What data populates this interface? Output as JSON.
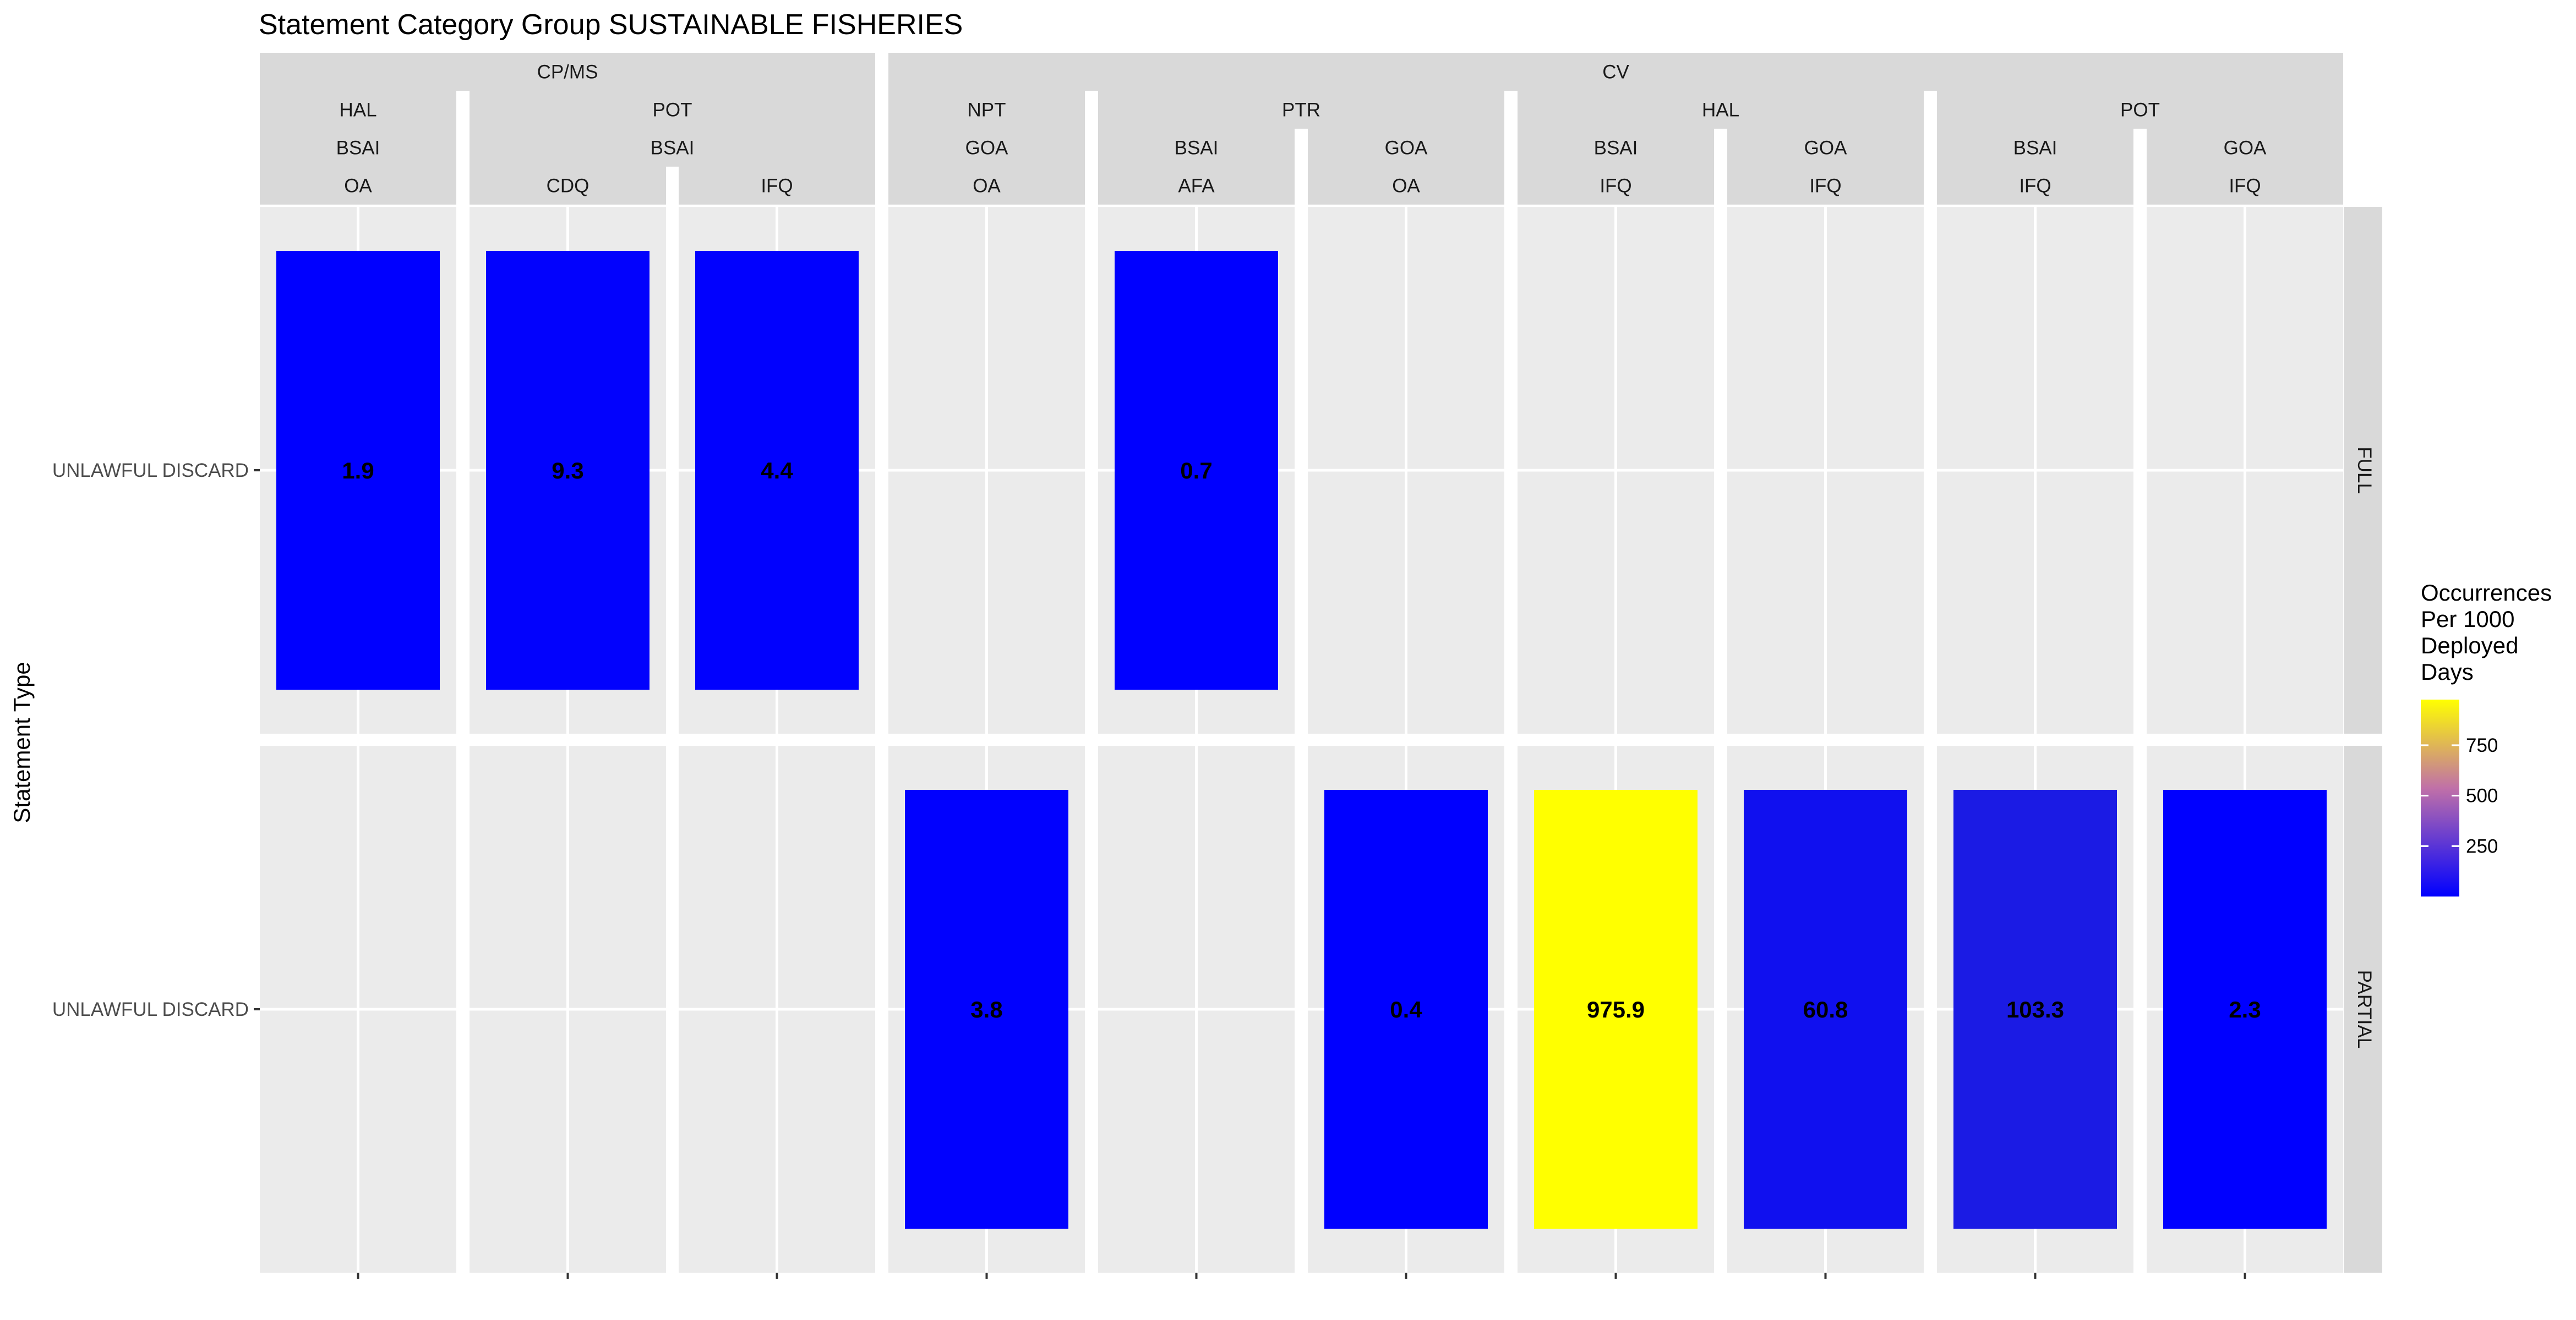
{
  "title": "Statement Category Group SUSTAINABLE FISHERIES",
  "chart_data": {
    "type": "bar",
    "title": "Statement Category Group SUSTAINABLE FISHERIES",
    "ylabel": "Statement Type",
    "xlabel": "",
    "columns": [
      {
        "level1": "CP/MS",
        "level2": "HAL",
        "level3": "BSAI",
        "level4": "OA"
      },
      {
        "level1": "CP/MS",
        "level2": "POT",
        "level3": "BSAI",
        "level4": "CDQ"
      },
      {
        "level1": "CP/MS",
        "level2": "POT",
        "level3": "BSAI",
        "level4": "IFQ"
      },
      {
        "level1": "CV",
        "level2": "NPT",
        "level3": "GOA",
        "level4": "OA"
      },
      {
        "level1": "CV",
        "level2": "PTR",
        "level3": "BSAI",
        "level4": "AFA"
      },
      {
        "level1": "CV",
        "level2": "PTR",
        "level3": "GOA",
        "level4": "OA"
      },
      {
        "level1": "CV",
        "level2": "HAL",
        "level3": "BSAI",
        "level4": "IFQ"
      },
      {
        "level1": "CV",
        "level2": "HAL",
        "level3": "GOA",
        "level4": "IFQ"
      },
      {
        "level1": "CV",
        "level2": "POT",
        "level3": "BSAI",
        "level4": "IFQ"
      },
      {
        "level1": "CV",
        "level2": "POT",
        "level3": "GOA",
        "level4": "IFQ"
      }
    ],
    "rows": [
      "FULL",
      "PARTIAL"
    ],
    "row_tick_labels": [
      "UNLAWFUL DISCARD",
      "UNLAWFUL DISCARD"
    ],
    "series": [
      {
        "row": "FULL",
        "values": [
          1.9,
          9.3,
          4.4,
          null,
          0.7,
          null,
          null,
          null,
          null,
          null
        ],
        "labels": [
          "1.9",
          "9.3",
          "4.4",
          null,
          "0.7",
          null,
          null,
          null,
          null,
          null
        ]
      },
      {
        "row": "PARTIAL",
        "values": [
          null,
          null,
          null,
          3.8,
          null,
          0.4,
          975.9,
          60.8,
          103.3,
          2.3
        ],
        "labels": [
          null,
          null,
          null,
          "3.8",
          null,
          "0.4",
          "975.9",
          "60.8",
          "103.3",
          "2.3"
        ]
      }
    ],
    "legend": {
      "title_lines": [
        "Occurrences",
        "Per 1000",
        "Deployed",
        "Days"
      ],
      "ticks": [
        250,
        500,
        750
      ],
      "tick_labels": [
        "250",
        "500",
        "750"
      ],
      "range": [
        0.4,
        975.9
      ],
      "low_color": "#0000ff",
      "high_color": "#ffff00",
      "placement": "right"
    }
  }
}
